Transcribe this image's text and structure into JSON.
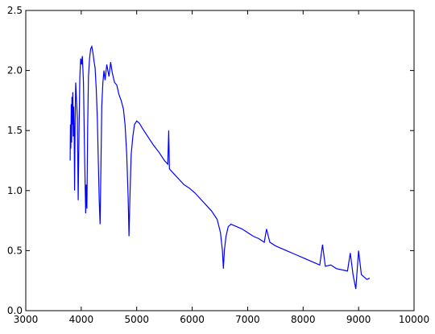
{
  "chart_data": {
    "type": "line",
    "x": [
      3800,
      3805,
      3812,
      3820,
      3826,
      3832,
      3840,
      3848,
      3856,
      3864,
      3872,
      3880,
      3890,
      3900,
      3915,
      3930,
      3945,
      3960,
      3975,
      3990,
      4005,
      4020,
      4040,
      4060,
      4080,
      4090,
      4102,
      4115,
      4130,
      4150,
      4170,
      4190,
      4210,
      4230,
      4250,
      4270,
      4290,
      4310,
      4325,
      4340,
      4355,
      4370,
      4390,
      4410,
      4430,
      4460,
      4500,
      4530,
      4560,
      4600,
      4640,
      4680,
      4720,
      4760,
      4790,
      4820,
      4845,
      4861,
      4875,
      4900,
      4930,
      4960,
      5000,
      5050,
      5100,
      5200,
      5300,
      5400,
      5500,
      5560,
      5577,
      5590,
      5650,
      5750,
      5850,
      5950,
      6050,
      6150,
      6250,
      6350,
      6450,
      6510,
      6545,
      6563,
      6580,
      6610,
      6650,
      6700,
      6800,
      6900,
      7000,
      7100,
      7200,
      7300,
      7340,
      7400,
      7500,
      7600,
      7700,
      7800,
      7900,
      8000,
      8100,
      8200,
      8300,
      8350,
      8400,
      8500,
      8600,
      8700,
      8800,
      8850,
      8900,
      8950,
      9000,
      9050,
      9100,
      9150,
      9200
    ],
    "series": [
      {
        "color": "#0000ff",
        "values": [
          1.25,
          1.55,
          1.35,
          1.72,
          1.4,
          1.78,
          1.55,
          1.82,
          1.45,
          1.7,
          1.5,
          1.0,
          1.6,
          1.9,
          1.75,
          1.6,
          0.92,
          1.5,
          1.95,
          2.1,
          2.05,
          2.12,
          1.9,
          1.3,
          0.81,
          1.05,
          0.85,
          1.5,
          1.95,
          2.1,
          2.18,
          2.2,
          2.15,
          2.08,
          2.02,
          1.85,
          1.6,
          1.2,
          0.9,
          0.72,
          1.2,
          1.7,
          1.9,
          2.0,
          1.92,
          2.05,
          1.95,
          2.07,
          1.98,
          1.9,
          1.88,
          1.8,
          1.75,
          1.68,
          1.55,
          1.3,
          0.95,
          0.62,
          0.9,
          1.3,
          1.45,
          1.55,
          1.58,
          1.56,
          1.52,
          1.45,
          1.38,
          1.32,
          1.25,
          1.22,
          1.5,
          1.18,
          1.15,
          1.1,
          1.05,
          1.02,
          0.98,
          0.93,
          0.88,
          0.83,
          0.76,
          0.65,
          0.5,
          0.35,
          0.5,
          0.62,
          0.7,
          0.72,
          0.7,
          0.68,
          0.65,
          0.62,
          0.6,
          0.57,
          0.68,
          0.57,
          0.54,
          0.52,
          0.5,
          0.48,
          0.46,
          0.44,
          0.42,
          0.4,
          0.38,
          0.55,
          0.37,
          0.38,
          0.35,
          0.34,
          0.33,
          0.48,
          0.3,
          0.18,
          0.5,
          0.3,
          0.28,
          0.26,
          0.27
        ]
      }
    ],
    "xlim": [
      3000,
      10000
    ],
    "ylim": [
      0,
      2.5
    ],
    "xticks": [
      3000,
      4000,
      5000,
      6000,
      7000,
      8000,
      9000,
      10000
    ],
    "yticks": [
      {
        "value": 0,
        "label": "0.0"
      },
      0.5,
      {
        "value": 1,
        "label": "1.0"
      },
      1.5,
      {
        "value": 2,
        "label": "2.0"
      },
      2.5
    ]
  }
}
